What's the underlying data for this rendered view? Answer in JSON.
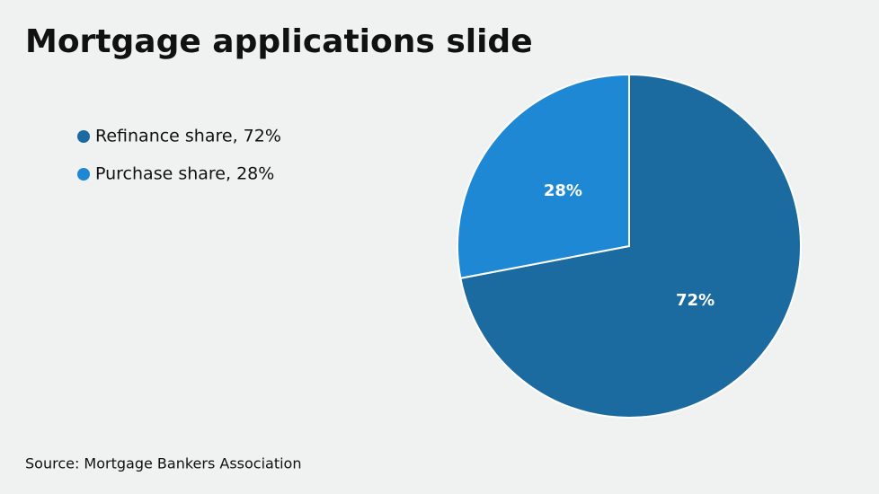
{
  "chart_data": {
    "type": "pie",
    "title": "Mortgage applications slide",
    "categories": [
      "Refinance share, 72%",
      "Purchase share, 28%"
    ],
    "values": [
      72,
      28
    ],
    "value_labels": [
      "72%",
      "28%"
    ],
    "colors": [
      "#1b6aa0",
      "#1e88d4"
    ],
    "source": "Source: Mortgage Bankers Association"
  }
}
